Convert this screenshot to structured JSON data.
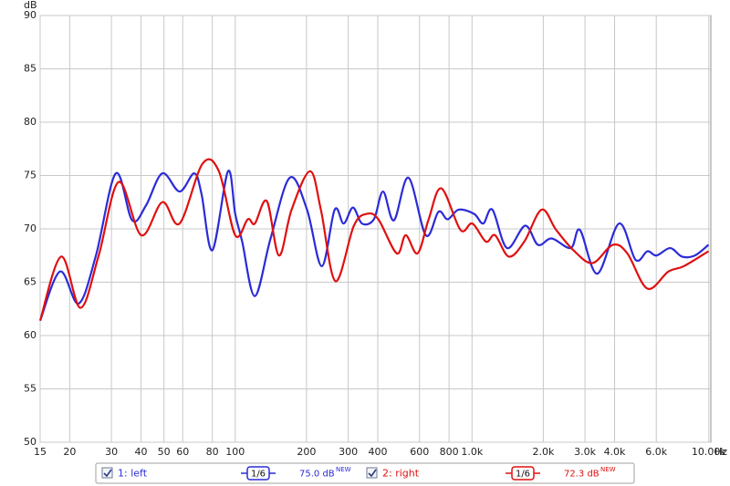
{
  "chart_data": {
    "type": "line",
    "x_label": "Hz",
    "y_label": "dB",
    "xscale": "log",
    "grid": true,
    "xlim": [
      15,
      10200
    ],
    "xticks": [
      15,
      20,
      30,
      40,
      50,
      60,
      80,
      100,
      200,
      300,
      400,
      600,
      800,
      {
        "value": 1000,
        "label": "1.0k"
      },
      {
        "value": 2000,
        "label": "2.0k"
      },
      {
        "value": 3000,
        "label": "3.0k"
      },
      {
        "value": 4000,
        "label": "4.0k"
      },
      {
        "value": 6000,
        "label": "6.0k"
      },
      {
        "value": 10000,
        "label": "10.00k"
      }
    ],
    "ylim": [
      50,
      90
    ],
    "yticks": [
      50,
      55,
      60,
      65,
      70,
      75,
      80,
      85,
      90
    ],
    "series": [
      {
        "name": "1: left",
        "color": "#2b2bd8",
        "smoothing": "1/6",
        "level": "75.0 dB",
        "level_tag": "NEW",
        "x": [
          15,
          18.2,
          21.8,
          25.8,
          31.3,
          36.7,
          42,
          49.2,
          58.2,
          67.1,
          72,
          80.1,
          93.2,
          100,
          107,
          121,
          141,
          170,
          201,
          232,
          263,
          287,
          314,
          343,
          385,
          421,
          468,
          539,
          638,
          722,
          789,
          878,
          1021,
          1115,
          1219,
          1405,
          1677,
          1899,
          2169,
          2613,
          2856,
          3380,
          4180,
          4904,
          5503,
          6014,
          6868,
          7705,
          8727,
          9969
        ],
        "values": [
          61.4,
          66.0,
          63.0,
          67.5,
          75.2,
          70.8,
          72.2,
          75.2,
          73.5,
          75.2,
          73.3,
          68.0,
          75.4,
          71.4,
          68.8,
          63.7,
          69.1,
          74.8,
          71.8,
          66.5,
          71.8,
          70.5,
          72.0,
          70.5,
          70.9,
          73.5,
          70.8,
          74.8,
          69.4,
          71.6,
          70.9,
          71.8,
          71.4,
          70.5,
          71.8,
          68.2,
          70.3,
          68.5,
          69.1,
          68.2,
          69.9,
          65.8,
          70.5,
          67.1,
          67.9,
          67.5,
          68.2,
          67.4,
          67.5,
          68.5
        ]
      },
      {
        "name": "2: right",
        "color": "#e01010",
        "smoothing": "1/6",
        "level": "72.3 dB",
        "level_tag": "NEW",
        "x": [
          15,
          18.4,
          22.2,
          26.5,
          32.2,
          40.1,
          49.2,
          58.2,
          72.7,
          85.3,
          100,
          113,
          121,
          136,
          153,
          173,
          207,
          230,
          265,
          317,
          359,
          402,
          481,
          525,
          589,
          656,
          742,
          894,
          1003,
          1145,
          1252,
          1430,
          1662,
          1968,
          2267,
          2708,
          3233,
          3930,
          4529,
          5503,
          6749,
          7844,
          9969
        ],
        "values": [
          61.4,
          67.4,
          62.6,
          67.5,
          74.4,
          69.4,
          72.5,
          70.5,
          76.1,
          75.4,
          69.4,
          70.9,
          70.5,
          72.6,
          67.5,
          71.8,
          75.4,
          71.8,
          65.1,
          70.3,
          71.4,
          70.9,
          67.7,
          69.4,
          67.7,
          70.9,
          73.8,
          69.9,
          70.5,
          68.8,
          69.4,
          67.4,
          68.8,
          71.8,
          69.9,
          67.9,
          66.8,
          68.5,
          67.7,
          64.4,
          66.0,
          66.5,
          67.9
        ]
      }
    ]
  }
}
